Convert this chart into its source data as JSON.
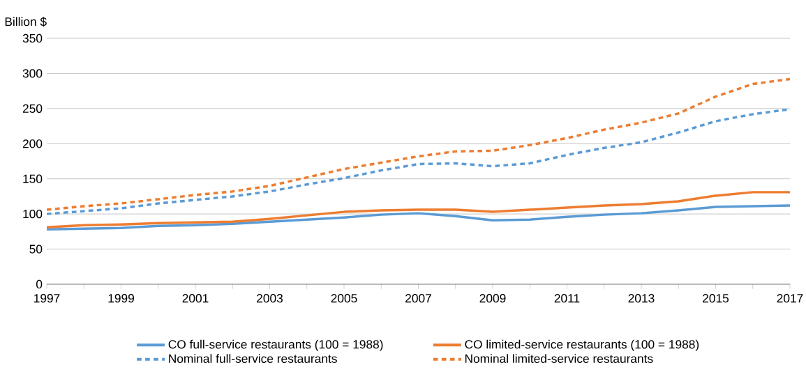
{
  "chart_data": {
    "type": "line",
    "ylabel": "Billion $",
    "x": [
      1997,
      1998,
      1999,
      2000,
      2001,
      2002,
      2003,
      2004,
      2005,
      2006,
      2007,
      2008,
      2009,
      2010,
      2011,
      2012,
      2013,
      2014,
      2015,
      2016,
      2017
    ],
    "series": [
      {
        "name": "CO full-service restaurants (100 = 1988)",
        "color": "#5b9bd5",
        "line_style": "solid",
        "values": [
          78,
          79,
          80,
          83,
          84,
          86,
          89,
          92,
          95,
          99,
          101,
          97,
          91,
          92,
          96,
          99,
          101,
          105,
          110,
          111,
          112
        ]
      },
      {
        "name": "CO limited-service restaurants (100 = 1988)",
        "color": "#ed7d31",
        "line_style": "solid",
        "values": [
          81,
          84,
          85,
          87,
          88,
          89,
          93,
          98,
          103,
          105,
          106,
          106,
          103,
          106,
          109,
          112,
          114,
          118,
          126,
          131,
          131
        ]
      },
      {
        "name": "Nominal full-service restaurants",
        "color": "#5b9bd5",
        "line_style": "dashed",
        "values": [
          100,
          104,
          108,
          115,
          120,
          125,
          132,
          142,
          151,
          162,
          171,
          172,
          168,
          172,
          184,
          194,
          202,
          216,
          232,
          242,
          249
        ]
      },
      {
        "name": "Nominal limited-service restaurants",
        "color": "#ed7d31",
        "line_style": "dashed",
        "values": [
          106,
          111,
          115,
          121,
          127,
          132,
          140,
          152,
          164,
          173,
          182,
          189,
          190,
          198,
          208,
          220,
          230,
          243,
          267,
          285,
          292
        ]
      }
    ],
    "xlim": [
      1997,
      2017
    ],
    "ylim": [
      0,
      350
    ],
    "xticks": [
      1997,
      {
        "value": 1998,
        "label": null
      },
      1999,
      {
        "value": 2000,
        "label": null
      },
      2001,
      {
        "value": 2002,
        "label": null
      },
      2003,
      {
        "value": 2004,
        "label": null
      },
      2005,
      {
        "value": 2006,
        "label": null
      },
      2007,
      {
        "value": 2008,
        "label": null
      },
      2009,
      {
        "value": 2010,
        "label": null
      },
      2011,
      {
        "value": 2012,
        "label": null
      },
      2013,
      {
        "value": 2014,
        "label": null
      },
      2015,
      {
        "value": 2016,
        "label": null
      },
      2017
    ],
    "yticks": [
      0,
      50,
      100,
      150,
      200,
      250,
      300,
      350
    ],
    "grid": "y",
    "legend": "bottom",
    "marker": "none"
  }
}
